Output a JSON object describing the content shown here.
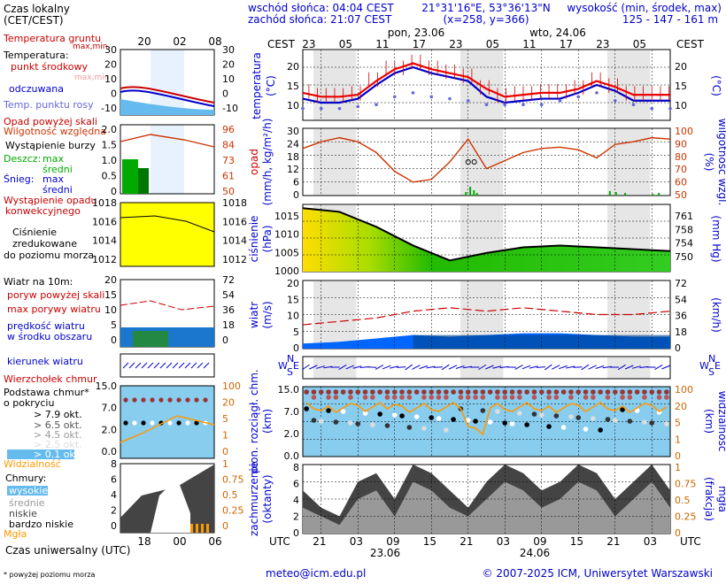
{
  "header": {
    "sunrise": "wschód słońca: 04:04 CEST",
    "sunset": "zachód słońca: 21:07 CEST",
    "coords": "21°31'16\"E, 53°36'13\"N",
    "grid": "(x=258, y=366)",
    "elevation_title": "wysokość (min, środek, max)",
    "elevation_values": "125 - 147 - 161 m"
  },
  "axis": {
    "cest": "CEST",
    "utc": "UTC",
    "top_hours": [
      "23",
      "05",
      "11",
      "17",
      "23",
      "05",
      "11",
      "17",
      "23",
      "05"
    ],
    "bottom_hours": [
      "21",
      "03",
      "09",
      "15",
      "21",
      "03",
      "09",
      "15",
      "21",
      "03"
    ],
    "day1_top": "pon, 23.06",
    "day2_top": "wto, 24.06",
    "day1_bottom": "23.06",
    "day2_bottom": "24.06"
  },
  "legend": {
    "local_time": "Czas lokalny",
    "local_time_sub": "(CET/CEST)",
    "local_hours": [
      "20",
      "02",
      "08"
    ],
    "utc_time": "Czas uniwersalny (UTC)",
    "utc_hours": [
      "18",
      "00",
      "06"
    ],
    "temp_ground": "Temperatura gruntu",
    "temp_ground_sub": "max,min",
    "temperature": "Temperatura:",
    "center_point": "punkt środkowy",
    "max_min": "max,min",
    "perceived": "odczuwana",
    "dew_point": "Temp. punktu rosy",
    "precip_above": "Opad powyżej skali",
    "storm": "Wystąpienie burzy",
    "rain": "Deszcz:",
    "snow": "Śnieg:",
    "max": "max",
    "mean": "średni",
    "rel_humidity": "Wilgotność względna",
    "convective": "Wystąpienie opadu",
    "convective2": "konwekcyjnego",
    "pressure1": "Ciśnienie",
    "pressure2": "zredukowane",
    "pressure3": "do poziomu morza",
    "wind_at": "Wiatr na 10m:",
    "gust_above": "poryw powyżej skali",
    "max_gust": "max porywy wiatru",
    "wind_speed1": "prędkość wiatru",
    "wind_speed2": "w środku obszaru",
    "wind_dir": "kierunek wiatru",
    "cloud_top": "Wierzchołek chmur",
    "cloud_base1": "Podstawa chmur*",
    "cloud_base2": "o pokryciu",
    "okt": [
      "> 7.9 okt.",
      "> 6.5 okt.",
      "> 4.5 okt.",
      "> 2.5 okt.",
      "> 0.1 okt."
    ],
    "visibility": "Widzialność",
    "clouds": "Chmury:",
    "high": "wysokie",
    "middle": "średnie",
    "low": "niskie",
    "very_low": "bardzo niskie",
    "fog": "Mgła",
    "footnote": "* powyżej poziomu morza"
  },
  "panel_labels": {
    "temperature": "temperatura",
    "deg_c": "(°C)",
    "precip": "opad",
    "precip_unit": "(mm/h, kg/m²/h)",
    "humidity_unit": "(%)",
    "humidity": "wilgotność wzgl.",
    "pressure": "ciśnienie",
    "pressure_unit": "(hPa)",
    "pressure_unit2": "(mm Hg)",
    "wind": "wiatr",
    "wind_unit": "(m/s)",
    "wind_unit2": "(km/h)",
    "cloud1": "pion. rozciągł. chm.",
    "km": "(km)",
    "visibility": "widzialność",
    "cloud_cover1": "zachmurzenie",
    "cloud_cover2": "(oktanty)",
    "fog1": "(frakcja)",
    "fog2": "mgła",
    "compass": [
      "N",
      "W",
      "S",
      "E"
    ]
  },
  "ticks": {
    "temp_left": [
      "20",
      "15",
      "10"
    ],
    "temp_right": [
      "20",
      "15",
      "10"
    ],
    "precip_left": [
      "30",
      "24",
      "18",
      "12",
      "6",
      "0"
    ],
    "humid_right": [
      "100",
      "90",
      "80",
      "70",
      "60",
      "50"
    ],
    "pressure_left": [
      "1015",
      "1010",
      "1005",
      "1000"
    ],
    "pressure_right": [
      "761",
      "758",
      "754",
      "750"
    ],
    "wind_left": [
      "20",
      "15",
      "10",
      "5",
      "0"
    ],
    "wind_right": [
      "72",
      "54",
      "36",
      "18",
      "0"
    ],
    "cloud_left": [
      "15.0",
      "7.0",
      "2.0",
      "0.0"
    ],
    "vis_right": [
      "100",
      "20",
      "5",
      "1",
      "0"
    ],
    "cover_left": [
      "8",
      "6",
      "4",
      "2",
      "0"
    ],
    "fog_right": [
      "1",
      "0.75",
      "0.5",
      "0.25",
      "0"
    ],
    "leg_temp_left": [
      "30",
      "20",
      "10",
      "0",
      "-10"
    ],
    "leg_temp_right": [
      "30",
      "20",
      "10",
      "0",
      "-10"
    ],
    "leg_precip_left": [
      "2.0",
      "1.5",
      "1.0",
      "0.5",
      "0"
    ],
    "leg_humid_right": [
      "96",
      "84",
      "73",
      "61",
      "50"
    ],
    "leg_press_left": [
      "1018",
      "1016",
      "1014",
      "1012"
    ],
    "leg_press_right": [
      "1018",
      "1016",
      "1014",
      "1012"
    ],
    "leg_wind_left": [
      "20",
      "15",
      "10",
      "5",
      "0"
    ],
    "leg_wind_right": [
      "72",
      "54",
      "36",
      "18",
      "0"
    ],
    "leg_cloud_left": [
      "15.0",
      "7.0",
      "2.0",
      "0.0"
    ],
    "leg_vis_right": [
      "100",
      "20",
      "5",
      "1",
      "0"
    ],
    "leg_cover_left": [
      "8",
      "6",
      "4",
      "2",
      "0"
    ],
    "leg_fog_right": [
      "1",
      "0.75",
      "0.5",
      "0.25",
      "0"
    ]
  },
  "footer": {
    "email": "meteo@icm.edu.pl",
    "copyright": "© 2007-2025 ICM, Uniwersytet Warszawski"
  },
  "colors": {
    "temperature": "#ee0000",
    "perceived": "#0000cc",
    "dew_point": "#6666dd",
    "humidity": "#cc3300",
    "rain_max": "#00aa00",
    "pressure_high": "#ffee00",
    "pressure_low": "#00bb00",
    "wind_fill": "#0066ff",
    "wind_dark": "#004488",
    "gust": "#cc0000",
    "visibility": "#ff9900",
    "night_shade": "#dddddd",
    "cloud_area": "#88ccee"
  },
  "chart_data": [
    {
      "type": "line",
      "title": "temperatura",
      "ylabel": "(°C)",
      "ylim": [
        8,
        26
      ],
      "x": [
        0,
        3,
        6,
        9,
        12,
        15,
        18,
        21,
        24,
        27,
        30,
        33,
        36,
        39,
        42,
        45,
        48,
        51,
        54,
        57,
        60
      ],
      "series": [
        {
          "name": "punkt środkowy",
          "values": [
            15,
            14,
            14,
            14.5,
            18,
            21,
            22.5,
            21,
            20,
            19,
            16,
            14,
            14.5,
            15,
            15,
            16,
            18,
            16.5,
            14.5,
            14.5,
            14.5
          ]
        },
        {
          "name": "odczuwana",
          "values": [
            13.5,
            12.5,
            12.5,
            13.5,
            17,
            20,
            21.5,
            20,
            19,
            18,
            14,
            12.5,
            13,
            13.5,
            13.5,
            15,
            17,
            15.5,
            13,
            13,
            13
          ]
        },
        {
          "name": "Temp. punktu rosy",
          "values": [
            11,
            11,
            11,
            11.5,
            12,
            14,
            15,
            14,
            13.5,
            13,
            12,
            12,
            12,
            12,
            13,
            14,
            15,
            13,
            12,
            11,
            11
          ]
        }
      ]
    },
    {
      "type": "line",
      "title": "wilgotność wzgl.",
      "ylabel": "(%)",
      "ylim": [
        50,
        100
      ],
      "x": [
        0,
        3,
        6,
        9,
        12,
        15,
        18,
        21,
        24,
        27,
        30,
        33,
        36,
        39,
        42,
        45,
        48,
        51,
        54,
        57,
        60
      ],
      "series": [
        {
          "name": "Wilgotność względna",
          "values": [
            85,
            90,
            93,
            90,
            82,
            68,
            60,
            62,
            75,
            92,
            70,
            76,
            82,
            85,
            86,
            84,
            78,
            88,
            90,
            93,
            92
          ]
        }
      ]
    },
    {
      "type": "area",
      "title": "ciśnienie",
      "ylabel": "(hPa)",
      "ylim": [
        1000,
        1018
      ],
      "x": [
        0,
        6,
        12,
        18,
        24,
        30,
        36,
        42,
        48,
        54,
        60
      ],
      "series": [
        {
          "name": "Ciśnienie",
          "values": [
            1017,
            1016,
            1012,
            1007,
            1003,
            1005,
            1006.5,
            1007,
            1006.5,
            1006,
            1005.5
          ]
        }
      ]
    },
    {
      "type": "area",
      "title": "wiatr",
      "ylabel": "(m/s)",
      "ylim": [
        0,
        20
      ],
      "x": [
        0,
        6,
        12,
        18,
        24,
        30,
        36,
        42,
        48,
        54,
        60
      ],
      "series": [
        {
          "name": "prędkość wiatru",
          "values": [
            1.5,
            2,
            3,
            4,
            3.5,
            4,
            4.5,
            4.5,
            4,
            3.5,
            3.5
          ]
        },
        {
          "name": "max porywy wiatru",
          "values": [
            7,
            8,
            9,
            11,
            12,
            11,
            12,
            11,
            10,
            10,
            11
          ]
        }
      ]
    }
  ]
}
